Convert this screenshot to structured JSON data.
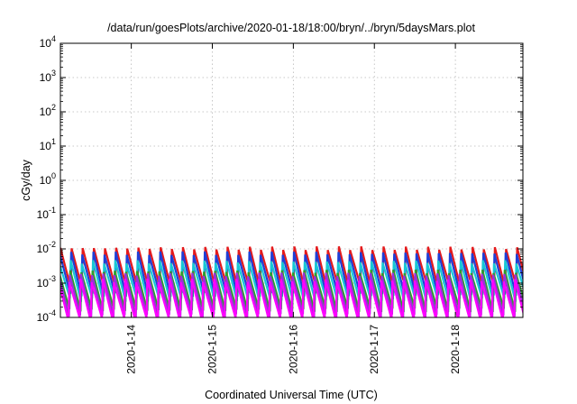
{
  "chart_data": {
    "type": "line",
    "title": "/data/run/goesPlots/archive/2020-01-18/18:00/bryn/../bryn/5daysMars.plot",
    "xlabel": "Coordinated Universal Time (UTC)",
    "ylabel": "cGy/day",
    "y_scale": "log",
    "ylim": [
      0.0001,
      10000
    ],
    "xlim": [
      "2020-01-13T03:00",
      "2020-01-18T20:00"
    ],
    "grid": true,
    "legend": "none",
    "y_ticks": [
      {
        "base": "10",
        "exp": "-4"
      },
      {
        "base": "10",
        "exp": "-3"
      },
      {
        "base": "10",
        "exp": "-2"
      },
      {
        "base": "10",
        "exp": "-1"
      },
      {
        "base": "10",
        "exp": "0"
      },
      {
        "base": "10",
        "exp": "1"
      },
      {
        "base": "10",
        "exp": "2"
      },
      {
        "base": "10",
        "exp": "3"
      },
      {
        "base": "10",
        "exp": "4"
      }
    ],
    "x_ticks": [
      "2020-1-14",
      "2020-1-15",
      "2020-1-16",
      "2020-1-17",
      "2020-1-18"
    ],
    "x_tick_dates": [
      "2020-01-14T00:00",
      "2020-01-15T00:00",
      "2020-01-16T00:00",
      "2020-01-17T00:00",
      "2020-01-18T00:00"
    ],
    "sawtooth_period_hours": 3.3,
    "series": [
      {
        "color": "#e41a1c",
        "peak": 0.0105,
        "trough": 0.00075,
        "phase": 0.0
      },
      {
        "color": "#1f3fd6",
        "peak": 0.0075,
        "trough": 0.00045,
        "phase": 0.04
      },
      {
        "color": "#17c7d6",
        "peak": 0.0042,
        "trough": 0.00032,
        "phase": 0.08
      },
      {
        "color": "#2ca02c",
        "peak": 0.0022,
        "trough": 0.00016,
        "phase": 0.12
      },
      {
        "color": "#9b30d9",
        "peak": 0.0018,
        "trough": 0.00011,
        "phase": 0.16
      },
      {
        "color": "#ff00ff",
        "peak": 0.0012,
        "trough": 8.5e-05,
        "phase": 0.2
      }
    ]
  }
}
